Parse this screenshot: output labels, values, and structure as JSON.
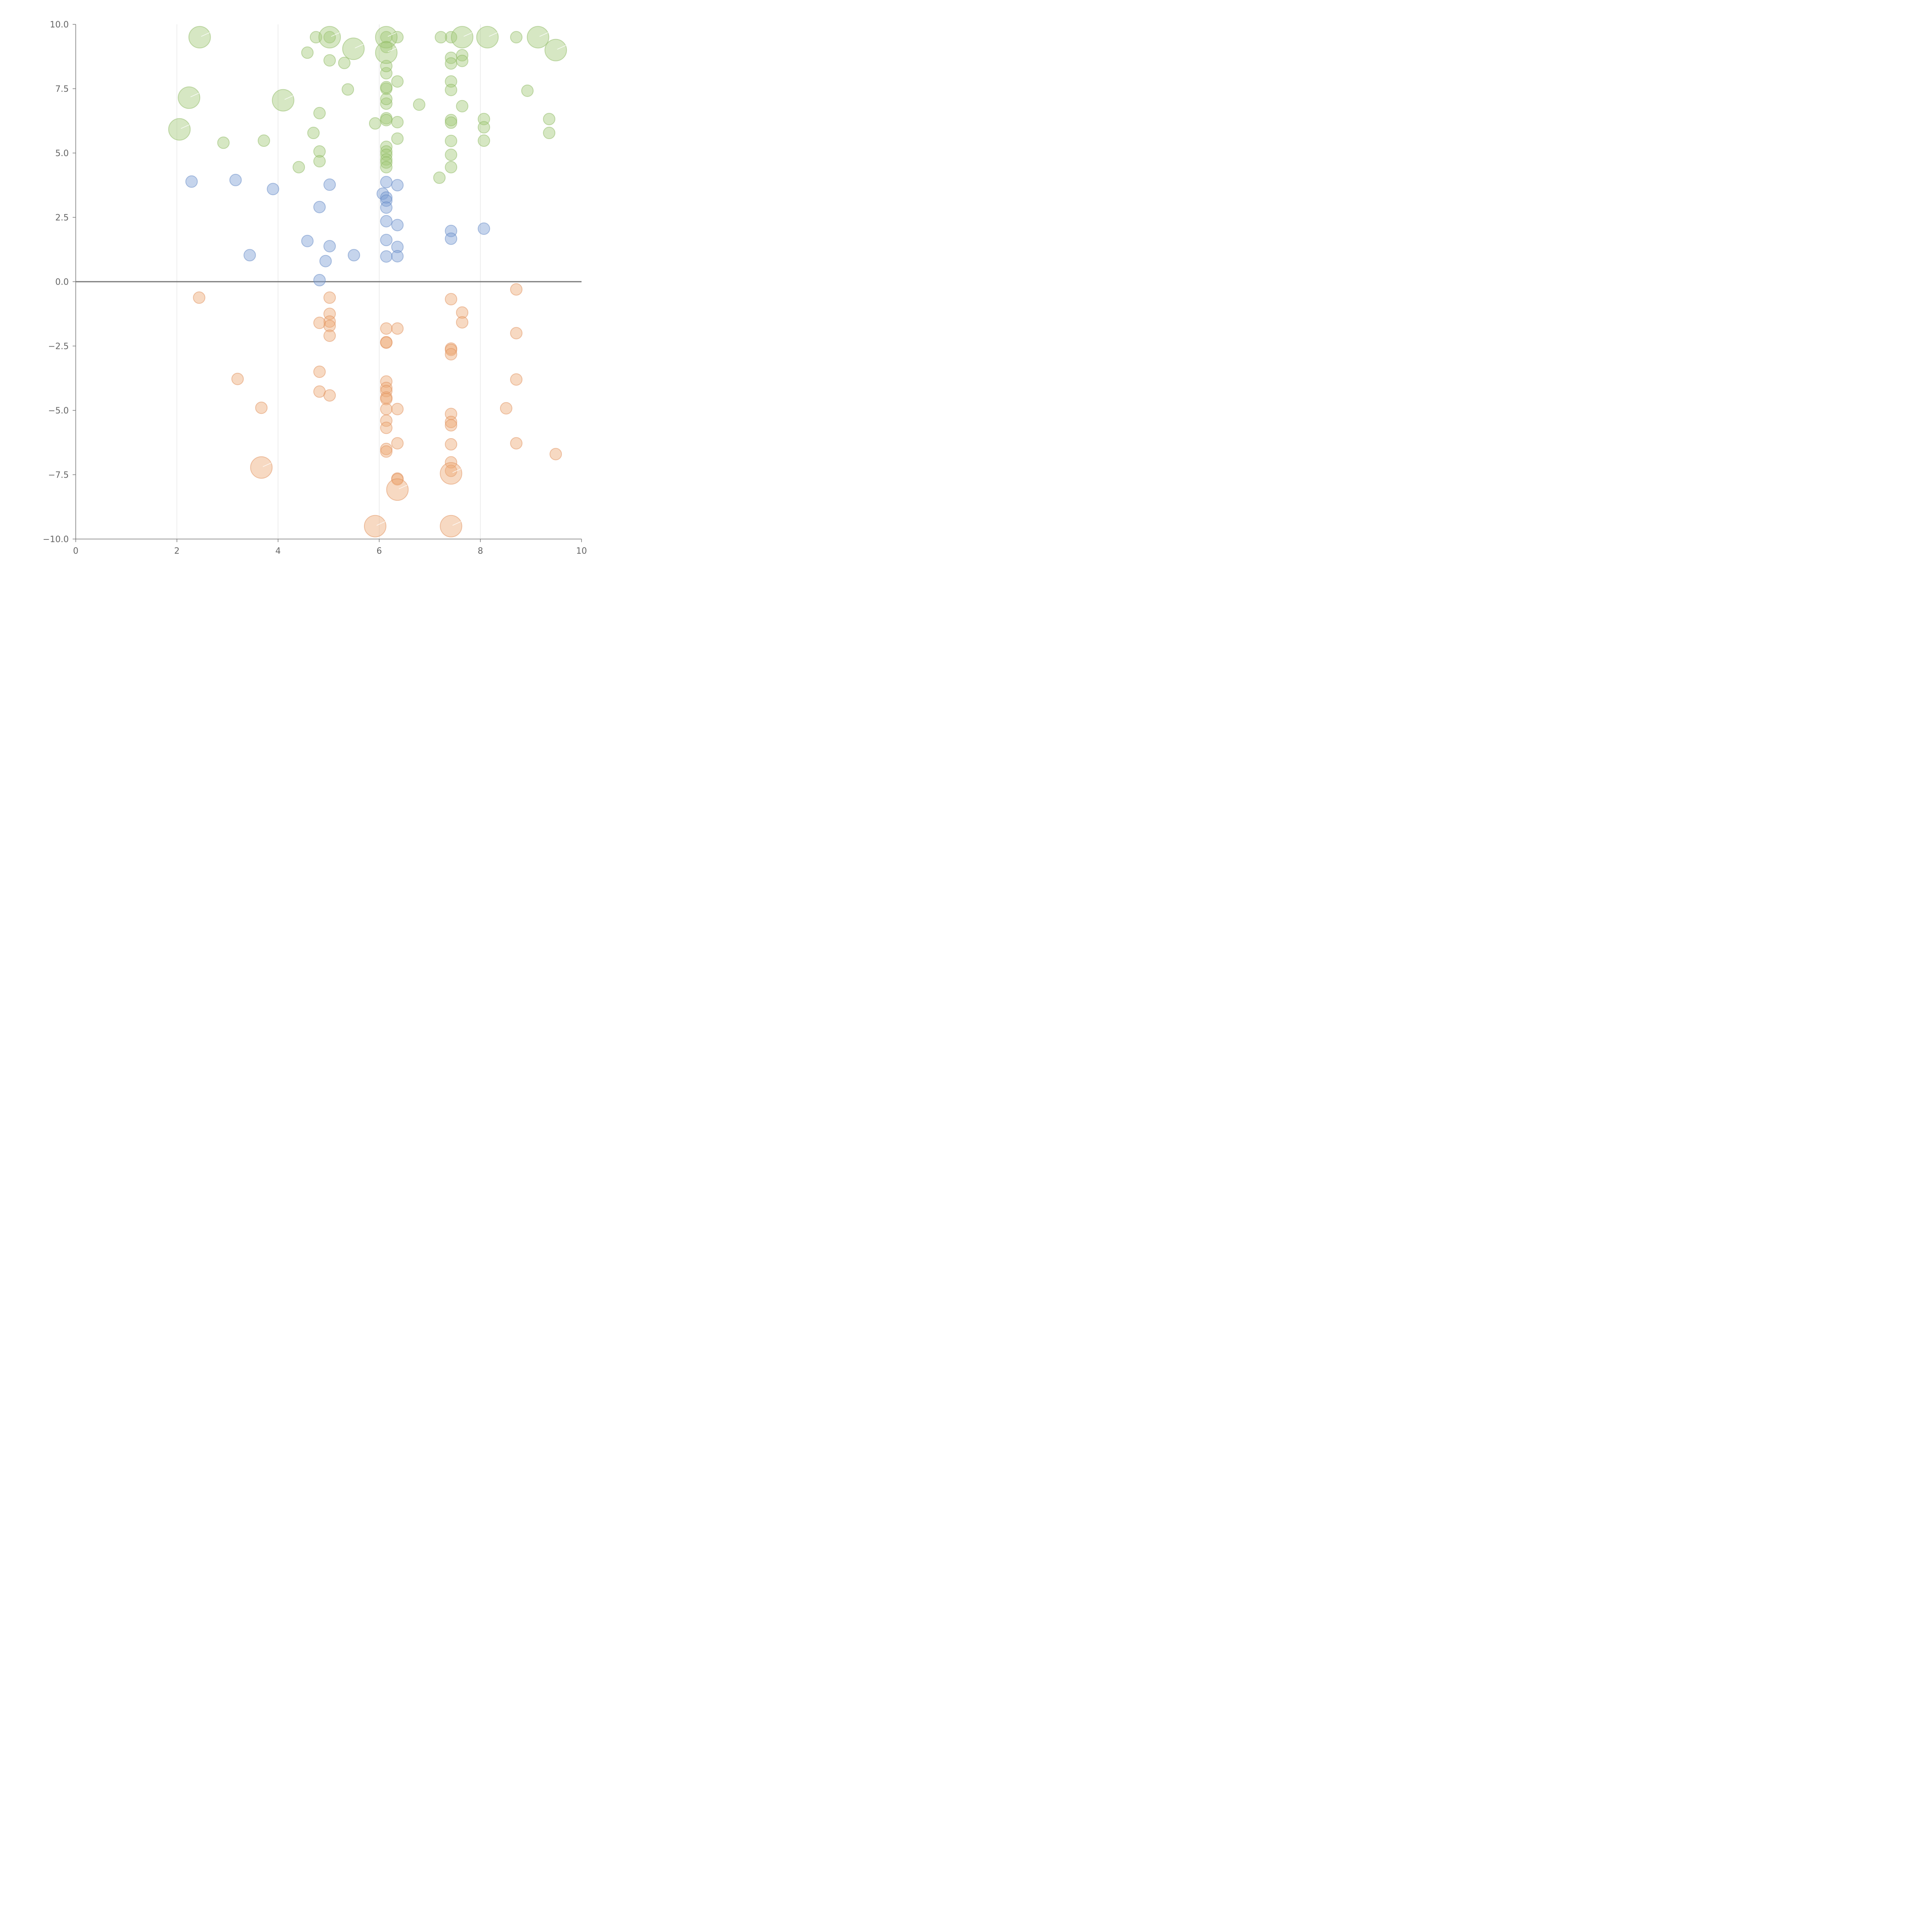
{
  "chart_data": {
    "type": "scatter",
    "xlim": [
      0,
      10
    ],
    "ylim": [
      -10,
      10
    ],
    "x_ticks": [
      "0",
      "2",
      "4",
      "6",
      "8",
      "10"
    ],
    "y_ticks": [
      "10.0",
      "7.5",
      "5.0",
      "2.5",
      "0.0",
      "−2.5",
      "−5.0",
      "−7.5",
      "−10.0"
    ],
    "grid": "vertical",
    "zero_line": true,
    "colors": {
      "high": "#a4c97a",
      "high_stroke": "#8bb85f",
      "mid": "#7fa0d4",
      "mid_stroke": "#5f86c4",
      "low": "#eeaa78",
      "low_stroke": "#e08e57"
    },
    "series": [
      {
        "group": "high",
        "points": [
          [
            4.58,
            8.9
          ],
          [
            5.02,
            8.6
          ],
          [
            5.31,
            8.5
          ],
          [
            5.38,
            7.47
          ],
          [
            4.82,
            6.55
          ],
          [
            4.7,
            5.78
          ],
          [
            3.72,
            5.48
          ],
          [
            2.92,
            5.4
          ],
          [
            4.82,
            5.06
          ],
          [
            4.82,
            4.68
          ],
          [
            4.41,
            4.45
          ],
          [
            5.92,
            6.15
          ],
          [
            6.14,
            6.35
          ],
          [
            6.14,
            6.28
          ],
          [
            6.14,
            6.92
          ],
          [
            6.14,
            7.1
          ],
          [
            6.14,
            7.5
          ],
          [
            6.14,
            7.56
          ],
          [
            6.14,
            8.1
          ],
          [
            6.14,
            8.38
          ],
          [
            6.14,
            9.12
          ],
          [
            6.14,
            9.5
          ],
          [
            6.14,
            5.24
          ],
          [
            6.14,
            5.06
          ],
          [
            6.14,
            4.93
          ],
          [
            6.14,
            4.75
          ],
          [
            6.14,
            4.63
          ],
          [
            6.14,
            4.45
          ],
          [
            6.36,
            7.78
          ],
          [
            6.36,
            6.2
          ],
          [
            6.36,
            5.56
          ],
          [
            6.79,
            6.88
          ],
          [
            7.19,
            4.04
          ],
          [
            7.42,
            9.5
          ],
          [
            7.42,
            8.7
          ],
          [
            7.42,
            8.48
          ],
          [
            7.42,
            7.78
          ],
          [
            7.42,
            7.45
          ],
          [
            7.42,
            6.28
          ],
          [
            7.42,
            6.18
          ],
          [
            7.42,
            5.47
          ],
          [
            7.42,
            4.93
          ],
          [
            7.42,
            4.45
          ],
          [
            7.64,
            8.8
          ],
          [
            7.64,
            8.58
          ],
          [
            7.64,
            6.82
          ],
          [
            8.07,
            6.32
          ],
          [
            8.07,
            6.0
          ],
          [
            8.07,
            5.48
          ],
          [
            8.93,
            7.42
          ],
          [
            9.36,
            6.32
          ],
          [
            9.36,
            5.78
          ],
          [
            8.71,
            9.5
          ],
          [
            7.22,
            9.5
          ],
          [
            4.75,
            9.5
          ],
          [
            5.02,
            9.5
          ],
          [
            6.36,
            9.5
          ]
        ]
      },
      {
        "group": "high-large",
        "points": [
          [
            2.45,
            9.5
          ],
          [
            5.02,
            9.5
          ],
          [
            5.49,
            9.05
          ],
          [
            6.14,
            9.5
          ],
          [
            6.14,
            8.9
          ],
          [
            7.64,
            9.5
          ],
          [
            8.14,
            9.5
          ],
          [
            9.14,
            9.5
          ],
          [
            9.49,
            9.0
          ],
          [
            2.24,
            7.15
          ],
          [
            4.1,
            7.05
          ],
          [
            2.05,
            5.92
          ]
        ]
      },
      {
        "group": "mid",
        "points": [
          [
            2.29,
            3.89
          ],
          [
            3.16,
            3.95
          ],
          [
            3.9,
            3.6
          ],
          [
            5.02,
            3.77
          ],
          [
            4.82,
            2.9
          ],
          [
            4.58,
            1.58
          ],
          [
            5.02,
            1.38
          ],
          [
            3.44,
            1.03
          ],
          [
            4.94,
            0.8
          ],
          [
            5.5,
            1.03
          ],
          [
            4.82,
            0.06
          ],
          [
            6.07,
            3.42
          ],
          [
            6.14,
            3.87
          ],
          [
            6.14,
            3.27
          ],
          [
            6.14,
            3.15
          ],
          [
            6.14,
            2.88
          ],
          [
            6.14,
            2.35
          ],
          [
            6.14,
            1.62
          ],
          [
            6.14,
            0.98
          ],
          [
            6.36,
            3.75
          ],
          [
            6.36,
            2.2
          ],
          [
            6.36,
            1.35
          ],
          [
            6.36,
            0.99
          ],
          [
            7.42,
            1.97
          ],
          [
            7.42,
            1.67
          ],
          [
            8.07,
            2.06
          ]
        ]
      },
      {
        "group": "low",
        "points": [
          [
            2.44,
            -0.62
          ],
          [
            5.02,
            -0.62
          ],
          [
            5.02,
            -1.25
          ],
          [
            5.02,
            -1.55
          ],
          [
            5.02,
            -1.72
          ],
          [
            4.82,
            -1.6
          ],
          [
            5.02,
            -2.1
          ],
          [
            4.82,
            -3.5
          ],
          [
            4.82,
            -4.27
          ],
          [
            5.02,
            -4.42
          ],
          [
            3.2,
            -3.78
          ],
          [
            3.67,
            -4.9
          ],
          [
            6.14,
            -1.82
          ],
          [
            6.36,
            -1.82
          ],
          [
            6.14,
            -2.35
          ],
          [
            6.14,
            -2.37
          ],
          [
            6.14,
            -3.88
          ],
          [
            6.14,
            -4.13
          ],
          [
            6.14,
            -4.25
          ],
          [
            6.14,
            -4.5
          ],
          [
            6.14,
            -4.56
          ],
          [
            6.14,
            -4.95
          ],
          [
            6.36,
            -4.95
          ],
          [
            6.14,
            -5.4
          ],
          [
            6.14,
            -5.68
          ],
          [
            6.36,
            -6.28
          ],
          [
            6.14,
            -6.5
          ],
          [
            6.14,
            -6.6
          ],
          [
            6.36,
            -7.65
          ],
          [
            6.36,
            -7.68
          ],
          [
            7.42,
            -0.68
          ],
          [
            7.64,
            -1.2
          ],
          [
            7.64,
            -1.58
          ],
          [
            7.42,
            -2.6
          ],
          [
            7.42,
            -2.65
          ],
          [
            7.42,
            -2.82
          ],
          [
            7.42,
            -5.14
          ],
          [
            7.42,
            -5.45
          ],
          [
            7.42,
            -5.58
          ],
          [
            7.42,
            -6.32
          ],
          [
            7.42,
            -7.02
          ],
          [
            7.42,
            -7.35
          ],
          [
            8.71,
            -0.3
          ],
          [
            8.71,
            -2.0
          ],
          [
            8.71,
            -3.8
          ],
          [
            8.51,
            -4.92
          ],
          [
            8.71,
            -6.28
          ],
          [
            9.49,
            -6.7
          ]
        ]
      },
      {
        "group": "low-large",
        "points": [
          [
            3.67,
            -7.22
          ],
          [
            5.92,
            -9.5
          ],
          [
            6.36,
            -8.08
          ],
          [
            7.42,
            -7.45
          ],
          [
            7.42,
            -9.5
          ]
        ]
      }
    ]
  }
}
